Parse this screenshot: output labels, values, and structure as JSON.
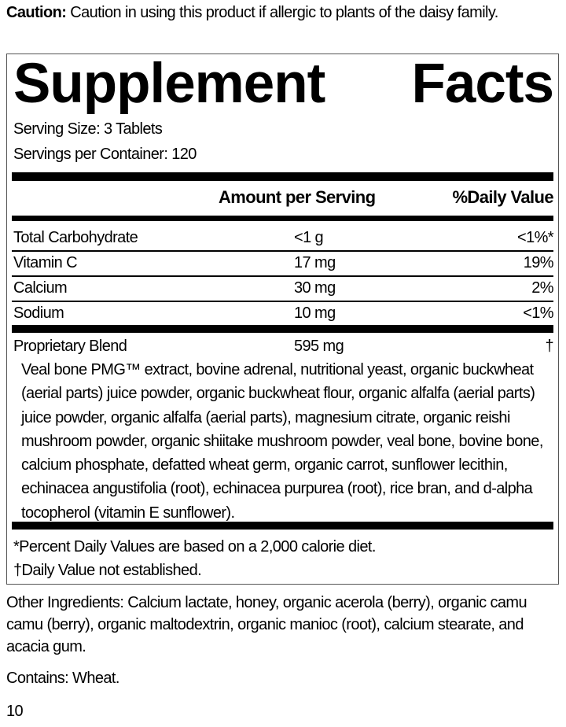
{
  "caution": {
    "label": "Caution:",
    "text": " Caution in using this product if allergic to plants of the daisy family."
  },
  "facts": {
    "title_word1": "Supplement",
    "title_word2": "Facts",
    "serving_size": "Serving Size: 3 Tablets",
    "servings_per_container": "Servings per Container: 120",
    "header": {
      "amount": "Amount per Serving",
      "daily_value": "%Daily Value"
    },
    "rows": [
      {
        "name": "Total Carbohydrate",
        "amount": "<1 g",
        "dv": "<1%*"
      },
      {
        "name": "Vitamin C",
        "amount": "17 mg",
        "dv": "19%"
      },
      {
        "name": "Calcium",
        "amount": "30 mg",
        "dv": "2%"
      },
      {
        "name": "Sodium",
        "amount": "10 mg",
        "dv": "<1%"
      }
    ],
    "blend": {
      "name": "Proprietary Blend",
      "amount": "595 mg",
      "dv": "†",
      "ingredients": "Veal bone PMG™ extract, bovine adrenal, nutritional yeast, organic buckwheat (aerial parts) juice powder, organic buckwheat flour, organic alfalfa (aerial parts) juice powder, organic alfalfa (aerial parts), magnesium citrate, organic reishi mushroom powder, organic shiitake mushroom powder, veal bone, bovine bone, calcium phosphate, defatted wheat germ, organic carrot, sunflower lecithin, echinacea angustifolia (root), echinacea purpurea (root), rice bran, and d-alpha tocopherol (vitamin E sunflower)."
    },
    "footnote1": "*Percent Daily Values are based on a 2,000 calorie diet.",
    "footnote2": "†Daily Value not established."
  },
  "other_ingredients": "Other Ingredients: Calcium lactate, honey, organic acerola (berry), organic camu camu (berry), organic maltodextrin, organic manioc (root), calcium stearate, and acacia gum.",
  "contains": "Contains: Wheat.",
  "page_number": "10"
}
